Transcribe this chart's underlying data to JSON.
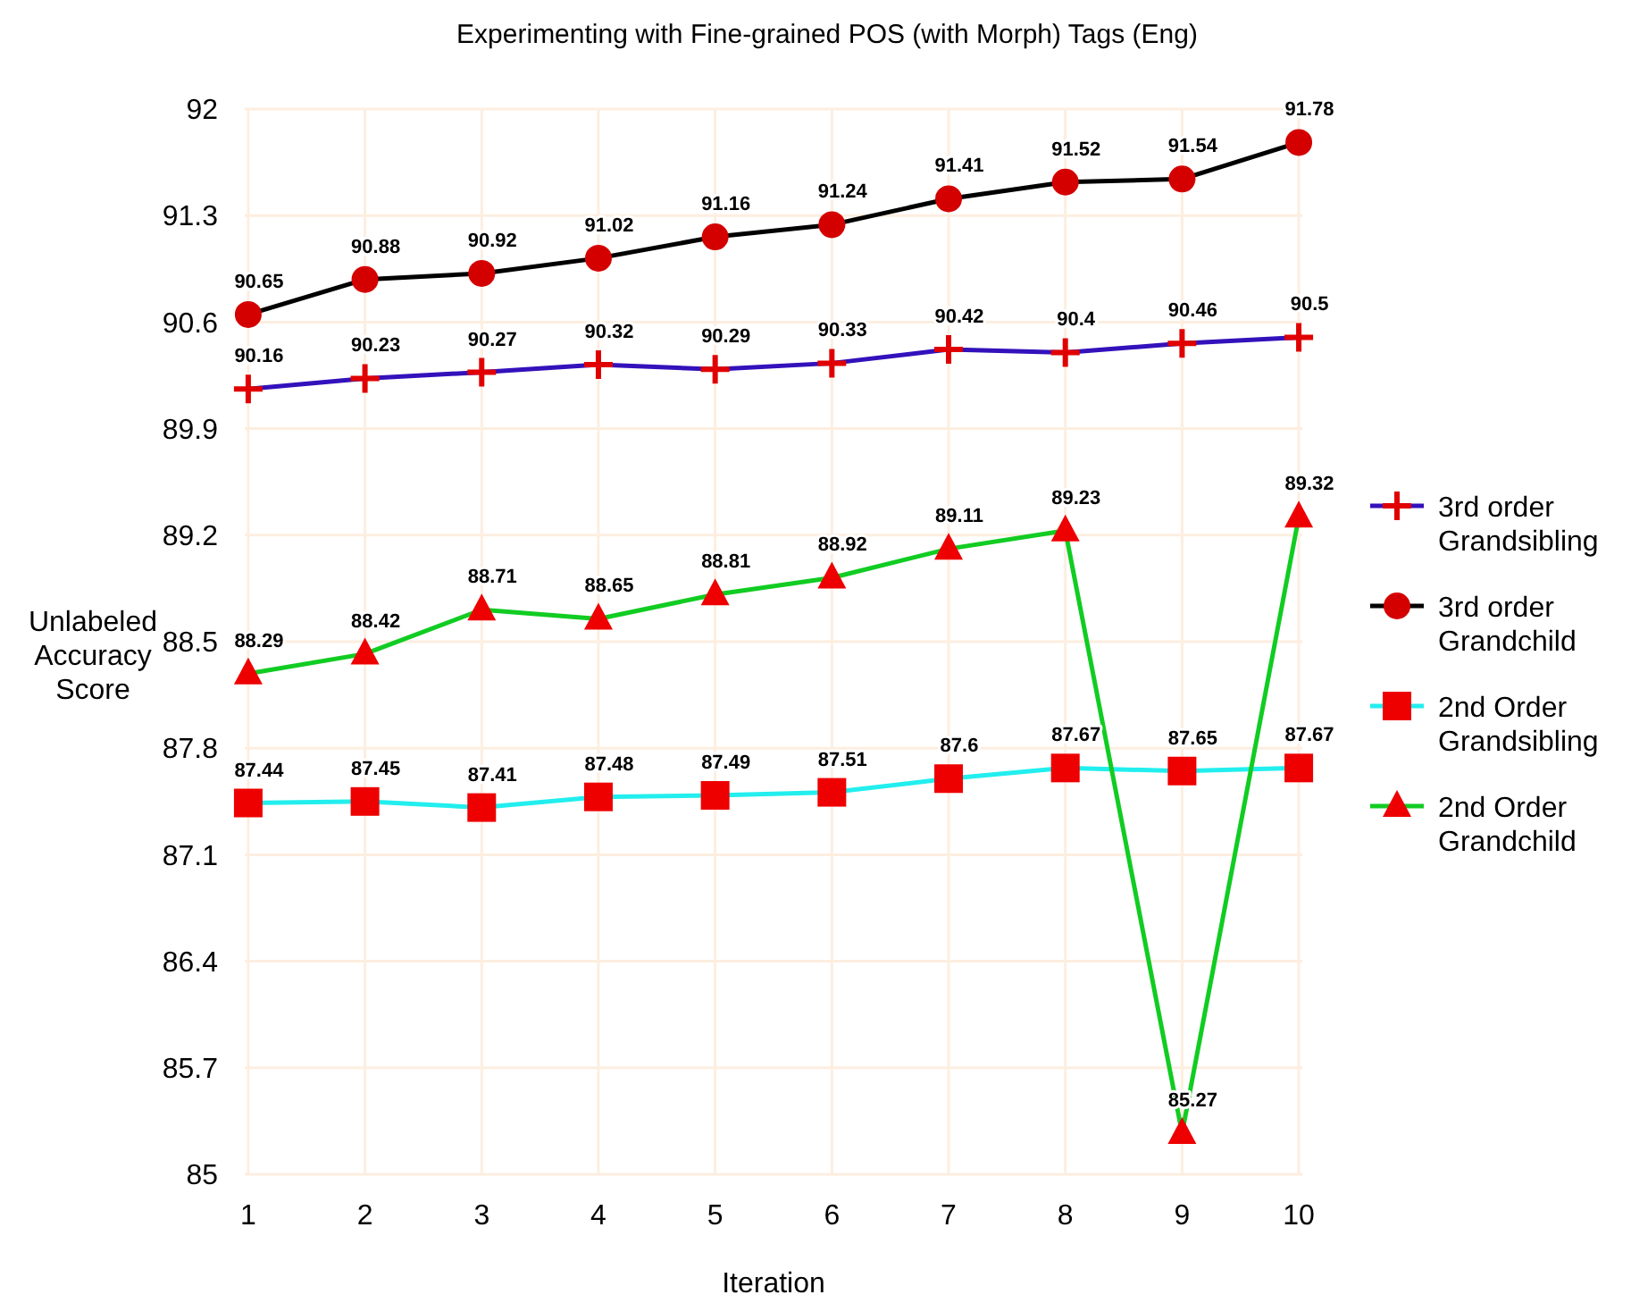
{
  "chart_data": {
    "type": "line",
    "title": "Experimenting with Fine-grained POS (with Morph) Tags (Eng)",
    "xlabel": "Iteration",
    "ylabel": "Unlabeled Accuracy Score",
    "x": [
      1,
      2,
      3,
      4,
      5,
      6,
      7,
      8,
      9,
      10
    ],
    "xlim": [
      0.97,
      10.03
    ],
    "xticks": [
      1,
      2,
      3,
      4,
      5,
      6,
      7,
      8,
      9,
      10
    ],
    "ylim": [
      85,
      92
    ],
    "yticks": [
      85,
      85.7,
      86.4,
      87.1,
      87.8,
      88.5,
      89.2,
      89.9,
      90.6,
      91.3,
      92
    ],
    "grid": true,
    "legend": "right",
    "data_labels": true,
    "line_style": "solid",
    "series": [
      {
        "name": "3rd order Grandsibling",
        "color": "#3311bb",
        "marker": "cross",
        "colors": [
          "#e00000",
          "#e00000",
          "#e00000",
          "#e00000",
          "#e00000",
          "#e00000",
          "#e00000",
          "#e00000",
          "#e00000",
          "#e00000"
        ],
        "values": [
          90.16,
          90.23,
          90.27,
          90.32,
          90.29,
          90.33,
          90.42,
          90.4,
          90.46,
          90.5
        ]
      },
      {
        "name": "3rd order Grandchild",
        "color": "#000000",
        "marker": "circle",
        "colors": [
          "#d40000",
          "#d40000",
          "#d40000",
          "#d40000",
          "#d40000",
          "#d40000",
          "#d40000",
          "#d40000",
          "#d40000",
          "#d40000"
        ],
        "values": [
          90.65,
          90.88,
          90.92,
          91.02,
          91.16,
          91.24,
          91.41,
          91.52,
          91.54,
          91.78
        ]
      },
      {
        "name": "2nd Order Grandsibling",
        "color": "#22eeee",
        "marker": "square",
        "colors": [
          "#ee0000",
          "#ee0000",
          "#ee0000",
          "#ee0000",
          "#ee0000",
          "#ee0000",
          "#ee0000",
          "#ee0000",
          "#ee0000",
          "#ee0000"
        ],
        "values": [
          87.44,
          87.45,
          87.41,
          87.48,
          87.49,
          87.51,
          87.6,
          87.67,
          87.65,
          87.67
        ]
      },
      {
        "name": "2nd Order Grandchild",
        "color": "#11cc22",
        "marker": "triangle",
        "colors": [
          "#ee0000",
          "#ee0000",
          "#ee0000",
          "#ee0000",
          "#ee0000",
          "#ee0000",
          "#ee0000",
          "#ee0000",
          "#ee0000",
          "#ee0000"
        ],
        "values": [
          88.29,
          88.42,
          88.71,
          88.65,
          88.81,
          88.92,
          89.11,
          89.23,
          85.27,
          89.32
        ]
      }
    ]
  }
}
